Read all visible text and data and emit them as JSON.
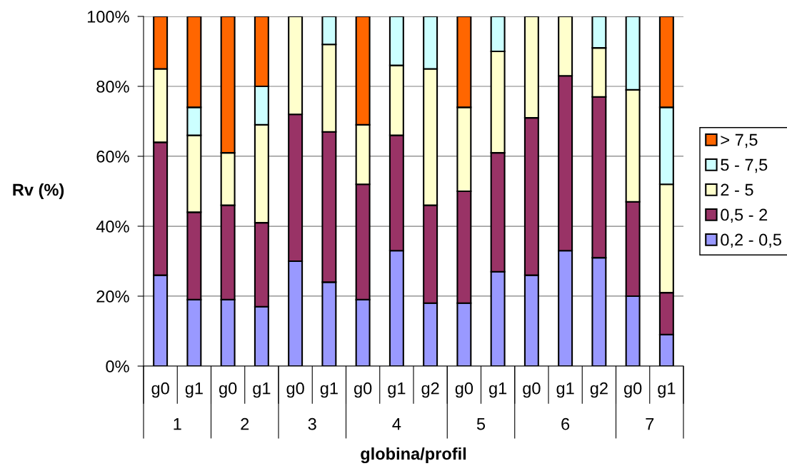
{
  "chart_data": {
    "type": "bar",
    "stacked": true,
    "xlabel": "globina/profil",
    "ylabel": "Rv (%)",
    "categories": [
      "g0",
      "g1",
      "g0",
      "g1",
      "g0",
      "g1",
      "g0",
      "g1",
      "g2",
      "g0",
      "g1",
      "g0",
      "g1",
      "g2",
      "g0",
      "g1"
    ],
    "annotations": [
      "1",
      "2",
      "3",
      "4",
      "5",
      "6",
      "7"
    ],
    "series": [
      {
        "name": "0,2 - 0,5",
        "color": "#9999ff",
        "values": [
          26,
          19,
          19,
          17,
          30,
          24,
          19,
          33,
          18,
          18,
          27,
          26,
          33,
          31,
          20,
          9
        ]
      },
      {
        "name": "0,5 - 2",
        "color": "#993366",
        "values": [
          38,
          25,
          27,
          24,
          42,
          43,
          33,
          33,
          28,
          32,
          34,
          45,
          50,
          46,
          27,
          12
        ]
      },
      {
        "name": "2 - 5",
        "color": "#ffffcc",
        "values": [
          21,
          22,
          15,
          28,
          28,
          25,
          17,
          20,
          39,
          24,
          29,
          29,
          17,
          14,
          32,
          31
        ]
      },
      {
        "name": "5 - 7,5",
        "color": "#ccffff",
        "values": [
          0,
          8,
          0,
          11,
          0,
          8,
          0,
          14,
          15,
          0,
          10,
          0,
          0,
          9,
          21,
          22
        ]
      },
      {
        "name": "> 7,5",
        "color": "#ff6600",
        "values": [
          15,
          26,
          39,
          20,
          0,
          0,
          31,
          0,
          0,
          26,
          0,
          0,
          0,
          0,
          0,
          26
        ]
      }
    ],
    "ylim": [
      0,
      100
    ],
    "yticks": [
      {
        "value": 0,
        "label": "0%"
      },
      {
        "value": 20,
        "label": "20%"
      },
      {
        "value": 40,
        "label": "40%"
      },
      {
        "value": 60,
        "label": "60%"
      },
      {
        "value": 80,
        "label": "80%"
      },
      {
        "value": 100,
        "label": "100%"
      }
    ],
    "grid": "y",
    "legend": "right"
  }
}
